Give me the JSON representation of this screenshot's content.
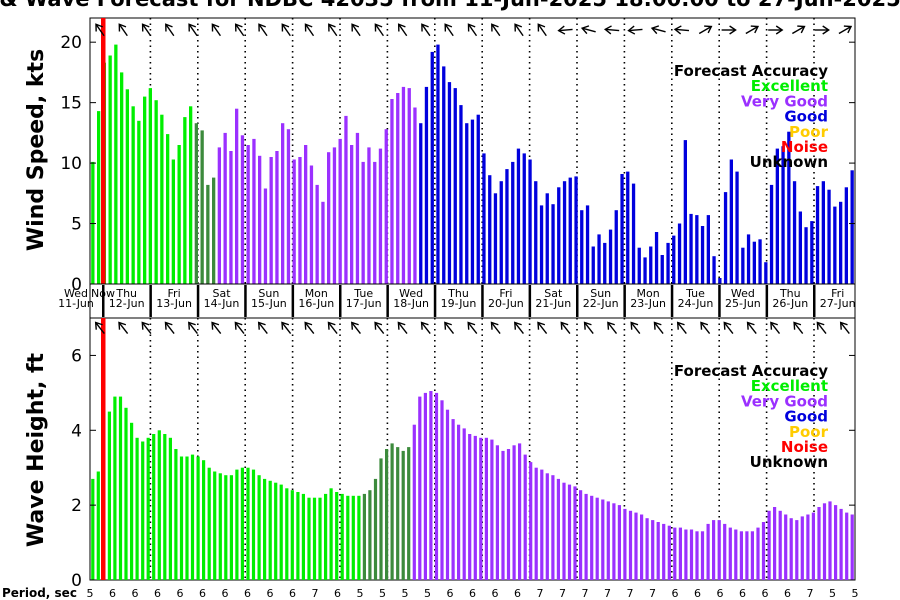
{
  "header": {
    "title": "& Wave Forecast for NDBC 42035 from 11-Jun-2025 18:00:00 to 27-Jun-2025"
  },
  "chart_data": [
    {
      "type": "bar",
      "ylabel": "Wind Speed, kts",
      "ylim": [
        0,
        22
      ],
      "yticks": [
        "0",
        "5",
        "10",
        "15",
        "20"
      ],
      "grid": "vertical dotted lines at 00:00 each day",
      "legend_position": "top-right",
      "legend": {
        "title": "Forecast Accuracy",
        "entries": [
          {
            "label": "Excellent",
            "color": "#00ee00"
          },
          {
            "label": "Very Good",
            "color": "#9b30ff"
          },
          {
            "label": "Good",
            "color": "#0000dd"
          },
          {
            "label": "Poor",
            "color": "#ffcc00"
          },
          {
            "label": "Noise",
            "color": "#ff0000"
          },
          {
            "label": "Unknown",
            "color": "#000000"
          }
        ]
      },
      "series": [
        {
          "values": [
            10.1,
            14.3,
            18.3,
            18.9,
            19.8,
            17.5,
            16.1,
            14.7,
            13.5,
            15.5,
            16.2,
            15.2,
            14.0,
            12.4,
            10.3,
            11.5,
            13.8,
            14.7,
            13.3,
            12.7,
            8.2,
            8.8,
            11.3,
            12.5,
            11.0,
            14.5,
            12.3,
            11.5,
            12.0,
            10.6,
            7.9,
            10.5,
            11.0,
            13.3,
            12.8,
            10.3,
            10.5,
            11.5,
            9.8,
            8.2,
            6.8,
            10.9,
            11.3,
            12.0,
            13.9,
            11.5,
            12.5,
            10.1,
            11.3,
            10.1,
            11.2,
            12.8,
            15.3,
            15.8,
            16.3,
            16.2,
            14.6,
            13.3,
            16.3,
            19.2,
            19.8,
            18.0,
            16.7,
            16.2,
            14.8,
            13.3,
            13.6,
            14.0,
            10.8,
            9.0,
            7.5,
            8.5,
            9.5,
            10.1,
            11.2,
            10.8,
            10.3,
            8.5,
            6.5,
            7.5,
            6.6,
            8.0,
            8.5,
            8.8,
            8.9,
            6.1,
            6.5,
            3.1,
            4.1,
            3.4,
            4.5,
            6.1,
            9.1,
            9.3,
            8.3,
            3.0,
            2.2,
            3.1,
            4.3,
            2.4,
            3.4,
            4.0,
            5.0,
            11.9,
            5.8,
            5.7,
            4.8,
            5.7,
            2.3,
            0.5,
            7.6,
            10.3,
            9.3,
            3.0,
            4.1,
            3.5,
            3.7,
            1.8,
            8.2,
            11.2,
            11.4,
            12.6,
            8.5,
            6.0,
            4.7,
            5.2,
            8.1,
            8.5,
            7.8,
            6.4,
            6.8,
            8.0,
            9.4
          ]
        }
      ],
      "accuracy_bands": [
        {
          "label": "Excellent",
          "color": "#00ee00",
          "from": 0,
          "to": 18
        },
        {
          "label": "Good/transition",
          "color": "#3c8a3c",
          "from": 18,
          "to": 22
        },
        {
          "label": "Very Good",
          "color": "#9b30ff",
          "from": 22,
          "to": 57
        },
        {
          "label": "Good",
          "color": "#0000dd",
          "from": 57,
          "to": 129
        }
      ]
    },
    {
      "type": "bar",
      "ylabel": "Wave Height, ft",
      "ylim": [
        0,
        7
      ],
      "yticks": [
        "0",
        "2",
        "4",
        "6"
      ],
      "legend_position": "top-right",
      "legend": {
        "title": "Forecast Accuracy",
        "entries": [
          {
            "label": "Excellent",
            "color": "#00ee00"
          },
          {
            "label": "Very Good",
            "color": "#9b30ff"
          },
          {
            "label": "Good",
            "color": "#0000dd"
          },
          {
            "label": "Poor",
            "color": "#ffcc00"
          },
          {
            "label": "Noise",
            "color": "#ff0000"
          },
          {
            "label": "Unknown",
            "color": "#000000"
          }
        ]
      },
      "series": [
        {
          "values": [
            2.7,
            2.9,
            3.9,
            4.5,
            4.9,
            4.9,
            4.6,
            4.2,
            3.8,
            3.7,
            3.8,
            3.9,
            4.0,
            3.9,
            3.8,
            3.5,
            3.3,
            3.3,
            3.35,
            3.3,
            3.2,
            3.0,
            2.9,
            2.85,
            2.8,
            2.8,
            2.95,
            3.0,
            3.0,
            2.95,
            2.8,
            2.7,
            2.65,
            2.6,
            2.55,
            2.45,
            2.4,
            2.35,
            2.3,
            2.2,
            2.2,
            2.2,
            2.3,
            2.45,
            2.35,
            2.3,
            2.25,
            2.25,
            2.25,
            2.3,
            2.4,
            2.7,
            3.25,
            3.5,
            3.65,
            3.55,
            3.45,
            3.55,
            4.15,
            4.9,
            5.0,
            5.05,
            5.0,
            4.8,
            4.55,
            4.3,
            4.15,
            4.05,
            3.9,
            3.85,
            3.8,
            3.8,
            3.75,
            3.6,
            3.45,
            3.5,
            3.6,
            3.65,
            3.35,
            3.15,
            3.0,
            2.95,
            2.85,
            2.8,
            2.7,
            2.6,
            2.55,
            2.5,
            2.4,
            2.3,
            2.25,
            2.2,
            2.15,
            2.1,
            2.05,
            2.0,
            1.9,
            1.85,
            1.8,
            1.75,
            1.65,
            1.6,
            1.55,
            1.5,
            1.45,
            1.4,
            1.4,
            1.35,
            1.35,
            1.3,
            1.3,
            1.5,
            1.6,
            1.6,
            1.5,
            1.4,
            1.35,
            1.3,
            1.3,
            1.3,
            1.4,
            1.55,
            1.85,
            1.95,
            1.85,
            1.75,
            1.65,
            1.6,
            1.7,
            1.75,
            1.8,
            1.95,
            2.05,
            2.1,
            2.0,
            1.9,
            1.8,
            1.75
          ]
        }
      ],
      "accuracy_bands": [
        {
          "label": "Excellent",
          "color": "#00ee00",
          "from": 0,
          "to": 49
        },
        {
          "label": "Good/transition",
          "color": "#3c8a3c",
          "from": 49,
          "to": 58
        },
        {
          "label": "Very Good",
          "color": "#9b30ff",
          "from": 58,
          "to": 131
        }
      ]
    }
  ],
  "day_labels": [
    {
      "dow": "Wed",
      "date": "11-Jun"
    },
    {
      "dow": "Thu",
      "date": "12-Jun"
    },
    {
      "dow": "Fri",
      "date": "13-Jun"
    },
    {
      "dow": "Sat",
      "date": "14-Jun"
    },
    {
      "dow": "Sun",
      "date": "15-Jun"
    },
    {
      "dow": "Mon",
      "date": "16-Jun"
    },
    {
      "dow": "Tue",
      "date": "17-Jun"
    },
    {
      "dow": "Wed",
      "date": "18-Jun"
    },
    {
      "dow": "Thu",
      "date": "19-Jun"
    },
    {
      "dow": "Fri",
      "date": "20-Jun"
    },
    {
      "dow": "Sat",
      "date": "21-Jun"
    },
    {
      "dow": "Sun",
      "date": "22-Jun"
    },
    {
      "dow": "Mon",
      "date": "23-Jun"
    },
    {
      "dow": "Tue",
      "date": "24-Jun"
    },
    {
      "dow": "Wed",
      "date": "25-Jun"
    },
    {
      "dow": "Thu",
      "date": "26-Jun"
    },
    {
      "dow": "Fri",
      "date": "27-Jun"
    }
  ],
  "now_marker_label": "Now",
  "period": {
    "label": "Period, sec",
    "values": [
      "5",
      "6",
      "6",
      "6",
      "6",
      "6",
      "6",
      "6",
      "6",
      "6",
      "7",
      "6",
      "5",
      "5",
      "5",
      "5",
      "6",
      "6",
      "6",
      "6",
      "7",
      "7",
      "7",
      "7",
      "7",
      "7",
      "6",
      "6",
      "6",
      "6",
      "6",
      "6",
      "7",
      "5",
      "5"
    ]
  },
  "colors": {
    "excellent": "#00ee00",
    "very_good": "#9b30ff",
    "good": "#0000dd",
    "transition": "#3c8a3c",
    "poor": "#ffcc00",
    "noise": "#ff0000",
    "unknown": "#000000",
    "now_line": "#ff0000"
  },
  "icons": {
    "direction": "arrow-icon"
  }
}
